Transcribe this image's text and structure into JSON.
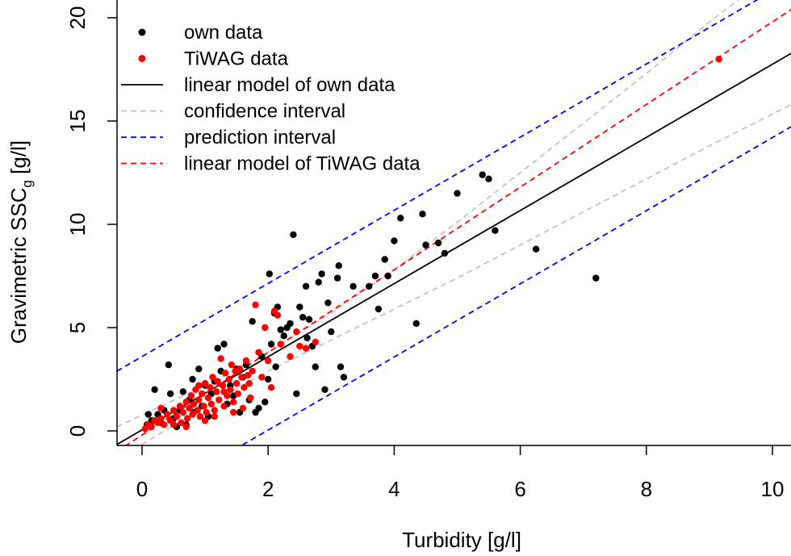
{
  "chart_data": {
    "type": "scatter",
    "xlabel": "Turbidity [g/l]",
    "ylabel_main": "Gravimetric SSC",
    "ylabel_sub": "g",
    "ylabel_unit": " [g/l]",
    "xlim": [
      -0.4,
      10.3
    ],
    "ylim": [
      -0.6,
      20.5
    ],
    "x_ticks": [
      0,
      2,
      4,
      6,
      8,
      10
    ],
    "y_ticks": [
      0,
      5,
      10,
      15,
      20
    ],
    "x_tick_labels": [
      "0",
      "2",
      "4",
      "6",
      "8",
      "10"
    ],
    "y_tick_labels": [
      "0",
      "5",
      "10",
      "15",
      "20"
    ],
    "legend_position": "top-left",
    "legend": [
      {
        "label": "own data",
        "kind": "point",
        "color": "#000000"
      },
      {
        "label": "TiWAG data",
        "kind": "point",
        "color": "#ff0000"
      },
      {
        "label": "linear model of own data",
        "kind": "line",
        "color": "#000000",
        "dash": "solid"
      },
      {
        "label": "confidence interval",
        "kind": "line",
        "color": "#bebebe",
        "dash": "dashed"
      },
      {
        "label": "prediction interval",
        "kind": "line",
        "color": "#0000ff",
        "dash": "dashed"
      },
      {
        "label": "linear model of TiWAG data",
        "kind": "line",
        "color": "#ff0000",
        "dash": "dashed"
      }
    ],
    "series": [
      {
        "name": "own data",
        "color": "#000000",
        "points": [
          [
            0.08,
            0.3
          ],
          [
            0.1,
            0.8
          ],
          [
            0.15,
            0.5
          ],
          [
            0.2,
            2.0
          ],
          [
            0.25,
            0.8
          ],
          [
            0.3,
            0.4
          ],
          [
            0.35,
            1.0
          ],
          [
            0.42,
            3.2
          ],
          [
            0.45,
            1.8
          ],
          [
            0.5,
            0.6
          ],
          [
            0.55,
            0.2
          ],
          [
            0.6,
            1.0
          ],
          [
            0.65,
            1.9
          ],
          [
            0.7,
            0.3
          ],
          [
            0.75,
            1.5
          ],
          [
            0.8,
            2.5
          ],
          [
            0.82,
            0.9
          ],
          [
            0.9,
            3.0
          ],
          [
            0.95,
            1.2
          ],
          [
            1.0,
            2.2
          ],
          [
            1.05,
            0.7
          ],
          [
            1.1,
            1.8
          ],
          [
            1.15,
            2.4
          ],
          [
            1.2,
            4.0
          ],
          [
            1.25,
            2.9
          ],
          [
            1.3,
            4.2
          ],
          [
            1.35,
            1.3
          ],
          [
            1.4,
            2.2
          ],
          [
            1.45,
            1.7
          ],
          [
            1.5,
            3.0
          ],
          [
            1.55,
            0.9
          ],
          [
            1.6,
            2.6
          ],
          [
            1.65,
            3.2
          ],
          [
            1.7,
            1.5
          ],
          [
            1.75,
            5.3
          ],
          [
            1.8,
            0.9
          ],
          [
            1.85,
            1.1
          ],
          [
            1.9,
            3.6
          ],
          [
            1.95,
            1.4
          ],
          [
            2.0,
            2.5
          ],
          [
            2.02,
            7.6
          ],
          [
            2.05,
            4.2
          ],
          [
            2.1,
            5.7
          ],
          [
            2.12,
            3.1
          ],
          [
            2.15,
            6.0
          ],
          [
            2.2,
            4.9
          ],
          [
            2.25,
            4.6
          ],
          [
            2.3,
            5.0
          ],
          [
            2.35,
            5.2
          ],
          [
            2.4,
            9.5
          ],
          [
            2.45,
            1.8
          ],
          [
            2.5,
            6.0
          ],
          [
            2.55,
            5.5
          ],
          [
            2.6,
            7.0
          ],
          [
            2.62,
            4.5
          ],
          [
            2.65,
            5.4
          ],
          [
            2.7,
            4.1
          ],
          [
            2.75,
            3.1
          ],
          [
            2.8,
            7.2
          ],
          [
            2.85,
            7.6
          ],
          [
            2.9,
            2.0
          ],
          [
            2.95,
            6.2
          ],
          [
            3.0,
            4.8
          ],
          [
            3.1,
            7.4
          ],
          [
            3.12,
            8.0
          ],
          [
            3.15,
            3.1
          ],
          [
            3.2,
            2.6
          ],
          [
            3.35,
            7.0
          ],
          [
            3.6,
            7.0
          ],
          [
            3.7,
            7.5
          ],
          [
            3.75,
            5.9
          ],
          [
            3.85,
            8.3
          ],
          [
            3.9,
            7.5
          ],
          [
            4.0,
            9.2
          ],
          [
            4.1,
            10.3
          ],
          [
            4.35,
            5.2
          ],
          [
            4.45,
            10.5
          ],
          [
            4.5,
            9.0
          ],
          [
            4.7,
            9.1
          ],
          [
            4.8,
            8.6
          ],
          [
            5.0,
            11.5
          ],
          [
            5.4,
            12.4
          ],
          [
            5.5,
            12.2
          ],
          [
            5.6,
            9.7
          ],
          [
            6.25,
            8.8
          ],
          [
            7.2,
            7.4
          ]
        ]
      },
      {
        "name": "TiWAG data",
        "color": "#ff0000",
        "points": [
          [
            0.05,
            0.1
          ],
          [
            0.1,
            0.3
          ],
          [
            0.15,
            0.2
          ],
          [
            0.2,
            0.5
          ],
          [
            0.25,
            0.4
          ],
          [
            0.3,
            0.6
          ],
          [
            0.35,
            0.3
          ],
          [
            0.4,
            0.8
          ],
          [
            0.45,
            0.5
          ],
          [
            0.5,
            1.0
          ],
          [
            0.55,
            0.7
          ],
          [
            0.6,
            1.2
          ],
          [
            0.62,
            0.4
          ],
          [
            0.65,
            0.9
          ],
          [
            0.7,
            1.4
          ],
          [
            0.72,
            0.6
          ],
          [
            0.75,
            1.1
          ],
          [
            0.78,
            1.7
          ],
          [
            0.8,
            0.8
          ],
          [
            0.82,
            1.3
          ],
          [
            0.85,
            2.0
          ],
          [
            0.88,
            1.0
          ],
          [
            0.9,
            1.5
          ],
          [
            0.92,
            0.7
          ],
          [
            0.95,
            1.8
          ],
          [
            0.98,
            1.2
          ],
          [
            1.0,
            2.3
          ],
          [
            1.02,
            0.9
          ],
          [
            1.05,
            1.6
          ],
          [
            1.08,
            2.1
          ],
          [
            1.1,
            1.3
          ],
          [
            1.12,
            2.6
          ],
          [
            1.15,
            1.0
          ],
          [
            1.18,
            1.9
          ],
          [
            1.2,
            2.4
          ],
          [
            1.22,
            1.5
          ],
          [
            1.25,
            3.5
          ],
          [
            1.28,
            2.2
          ],
          [
            1.3,
            1.2
          ],
          [
            1.32,
            2.8
          ],
          [
            1.35,
            1.7
          ],
          [
            1.38,
            2.5
          ],
          [
            1.4,
            2.0
          ],
          [
            1.42,
            3.2
          ],
          [
            1.45,
            1.4
          ],
          [
            1.48,
            2.9
          ],
          [
            1.5,
            2.3
          ],
          [
            1.52,
            1.8
          ],
          [
            1.55,
            3.0
          ],
          [
            1.58,
            2.6
          ],
          [
            1.6,
            1.1
          ],
          [
            1.62,
            2.1
          ],
          [
            1.65,
            3.4
          ],
          [
            1.68,
            2.7
          ],
          [
            1.7,
            2.3
          ],
          [
            1.72,
            1.6
          ],
          [
            1.75,
            2.9
          ],
          [
            1.8,
            6.1
          ],
          [
            1.85,
            3.8
          ],
          [
            1.9,
            2.6
          ],
          [
            1.95,
            5.0
          ],
          [
            2.0,
            3.4
          ],
          [
            2.05,
            2.1
          ],
          [
            2.1,
            5.8
          ],
          [
            2.15,
            5.6
          ],
          [
            2.2,
            4.2
          ],
          [
            2.35,
            3.6
          ],
          [
            2.45,
            4.8
          ],
          [
            2.5,
            4.1
          ],
          [
            2.6,
            4.0
          ],
          [
            2.75,
            4.3
          ],
          [
            9.15,
            18.0
          ],
          [
            0.3,
            1.1
          ],
          [
            0.5,
            0.3
          ],
          [
            0.7,
            0.2
          ],
          [
            0.9,
            2.2
          ],
          [
            1.0,
            0.5
          ],
          [
            1.15,
            0.7
          ],
          [
            1.3,
            1.9
          ],
          [
            1.45,
            0.9
          ]
        ]
      }
    ],
    "lines": [
      {
        "name": "linear model of own data",
        "color": "#000000",
        "dash": "",
        "intercept": 0.05,
        "slope": 1.77
      },
      {
        "name": "linear model of TiWAG data",
        "color": "#ff0000",
        "dash": "7,5",
        "intercept": -0.2,
        "slope": 2.0
      },
      {
        "name": "prediction interval (upper)",
        "color": "#0000ff",
        "dash": "7,5",
        "intercept": 3.6,
        "slope": 1.77
      },
      {
        "name": "prediction interval (lower)",
        "color": "#0000ff",
        "dash": "7,5",
        "intercept": -3.5,
        "slope": 1.77
      }
    ],
    "confidence_interval": {
      "color": "#bebebe",
      "dash": "7,5",
      "upper": [
        [
          -0.4,
          0.2
        ],
        [
          1,
          2.2
        ],
        [
          2,
          3.8
        ],
        [
          3,
          5.7
        ],
        [
          4,
          7.8
        ],
        [
          5,
          10.1
        ],
        [
          6,
          12.5
        ],
        [
          7,
          14.9
        ],
        [
          8,
          17.3
        ],
        [
          9,
          19.8
        ],
        [
          10.3,
          22.8
        ]
      ],
      "lower": [
        [
          -0.4,
          -1.4
        ],
        [
          1,
          1.2
        ],
        [
          2,
          2.9
        ],
        [
          3,
          4.4
        ],
        [
          4,
          5.9
        ],
        [
          5,
          7.4
        ],
        [
          6,
          9.0
        ],
        [
          7,
          10.6
        ],
        [
          8,
          12.2
        ],
        [
          9,
          13.8
        ],
        [
          10.3,
          15.8
        ]
      ]
    }
  }
}
